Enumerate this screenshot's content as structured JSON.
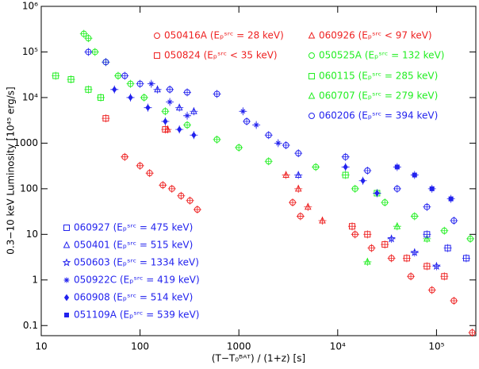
{
  "chart_data": {
    "type": "scatter",
    "log_x": true,
    "log_y": true,
    "xlabel": "(T−T₀ᴮᴬᵀ) / (1+z)  [s]",
    "ylabel": "0.3−10 keV Luminosity [10⁴⁵ erg/s]",
    "xlim": [
      10,
      250000
    ],
    "ylim": [
      0.06,
      1000000
    ],
    "xticks": [
      10,
      100,
      1000,
      {
        "value": 10000,
        "label": "10⁴"
      },
      {
        "value": 100000,
        "label": "10⁵"
      }
    ],
    "yticks": [
      0.1,
      1,
      10,
      100,
      1000,
      {
        "value": 10000,
        "label": "10⁴"
      },
      {
        "value": 100000,
        "label": "10⁵"
      },
      {
        "value": 1000000,
        "label": "10⁶"
      }
    ],
    "series": [
      {
        "name": "050416A (Eₚˢʳᶜ = 28 keV)",
        "color": "#ee2222",
        "marker": "circle",
        "x": [
          70,
          100,
          125,
          170,
          210,
          260,
          320,
          380,
          3500,
          4200,
          15000,
          22000,
          35000,
          55000,
          90000,
          150000,
          230000
        ],
        "y": [
          500,
          320,
          220,
          120,
          100,
          70,
          55,
          35,
          50,
          25,
          10,
          5,
          3,
          1.2,
          0.6,
          0.35,
          0.07
        ]
      },
      {
        "name": "050824 (Eₚˢʳᶜ < 35 keV)",
        "color": "#ee2222",
        "marker": "square",
        "x": [
          45,
          180,
          14000,
          20000,
          30000,
          50000,
          80000,
          120000
        ],
        "y": [
          3500,
          2000,
          15,
          10,
          6,
          3,
          2,
          1.2
        ]
      },
      {
        "name": "060926 (Eₚˢʳᶜ < 97 keV)",
        "color": "#ee2222",
        "marker": "triangle",
        "x": [
          190,
          3000,
          4000,
          5000,
          7000
        ],
        "y": [
          2000,
          200,
          100,
          40,
          20
        ]
      },
      {
        "name": "050525A (Eₚˢʳᶜ = 132 keV)",
        "color": "#22ee22",
        "marker": "circle",
        "x": [
          27,
          30,
          35,
          45,
          60,
          80,
          110,
          180,
          300,
          600,
          1000,
          2000,
          6000,
          15000,
          30000,
          60000,
          120000,
          220000
        ],
        "y": [
          250000,
          200000,
          100000,
          60000,
          30000,
          20000,
          10000,
          5000,
          2500,
          1200,
          800,
          400,
          300,
          100,
          50,
          25,
          12,
          8
        ]
      },
      {
        "name": "060115 (Eₚˢʳᶜ = 285 keV)",
        "color": "#22ee22",
        "marker": "square",
        "x": [
          14,
          20,
          30,
          40,
          12000,
          25000
        ],
        "y": [
          30000,
          25000,
          15000,
          10000,
          200,
          80
        ]
      },
      {
        "name": "060707 (Eₚˢʳᶜ = 279 keV)",
        "color": "#22ee22",
        "marker": "triangle",
        "x": [
          20000,
          40000,
          80000
        ],
        "y": [
          2.5,
          15,
          8
        ]
      },
      {
        "name": "060206 (Eₚˢʳᶜ = 394 keV)",
        "color": "#2222ee",
        "marker": "circle",
        "x": [
          30,
          45,
          70,
          100,
          200,
          300,
          600,
          1200,
          2000,
          3000,
          4000,
          12000,
          20000,
          40000,
          80000,
          150000
        ],
        "y": [
          100000,
          60000,
          30000,
          20000,
          15000,
          13000,
          12000,
          3000,
          1500,
          900,
          600,
          500,
          250,
          100,
          40,
          20
        ]
      },
      {
        "name": "060927 (Eₚˢʳᶜ = 475 keV)",
        "color": "#2222ee",
        "marker": "square",
        "x": [
          80000,
          130000,
          200000
        ],
        "y": [
          10,
          5,
          3
        ]
      },
      {
        "name": "050401 (Eₚˢʳᶜ = 515 keV)",
        "color": "#2222ee",
        "marker": "triangle",
        "x": [
          150,
          250,
          350,
          4000
        ],
        "y": [
          15000,
          6000,
          5000,
          200
        ]
      },
      {
        "name": "050603 (Eₚˢʳᶜ = 1334 keV)",
        "color": "#2222ee",
        "marker": "star",
        "x": [
          35000,
          60000,
          100000
        ],
        "y": [
          8,
          4,
          2
        ]
      },
      {
        "name": "050922C (Eₚˢʳᶜ = 419 keV)",
        "color": "#2222ee",
        "marker": "asterisk",
        "x": [
          130,
          200,
          300,
          1100,
          1500,
          2500
        ],
        "y": [
          20000,
          8000,
          4000,
          5000,
          2500,
          1000
        ]
      },
      {
        "name": "060908 (Eₚˢʳᶜ = 514 keV)",
        "color": "#2222ee",
        "marker": "diamond",
        "x": [
          55,
          80,
          120,
          180,
          250,
          350,
          12000,
          18000,
          25000
        ],
        "y": [
          15000,
          10000,
          6000,
          3000,
          2000,
          1500,
          300,
          150,
          80
        ]
      },
      {
        "name": "051109A (Eₚˢʳᶜ = 539 keV)",
        "color": "#2222ee",
        "marker": "filled-square",
        "x": [
          40000,
          60000,
          90000,
          140000
        ],
        "y": [
          300,
          200,
          100,
          60
        ]
      }
    ]
  }
}
